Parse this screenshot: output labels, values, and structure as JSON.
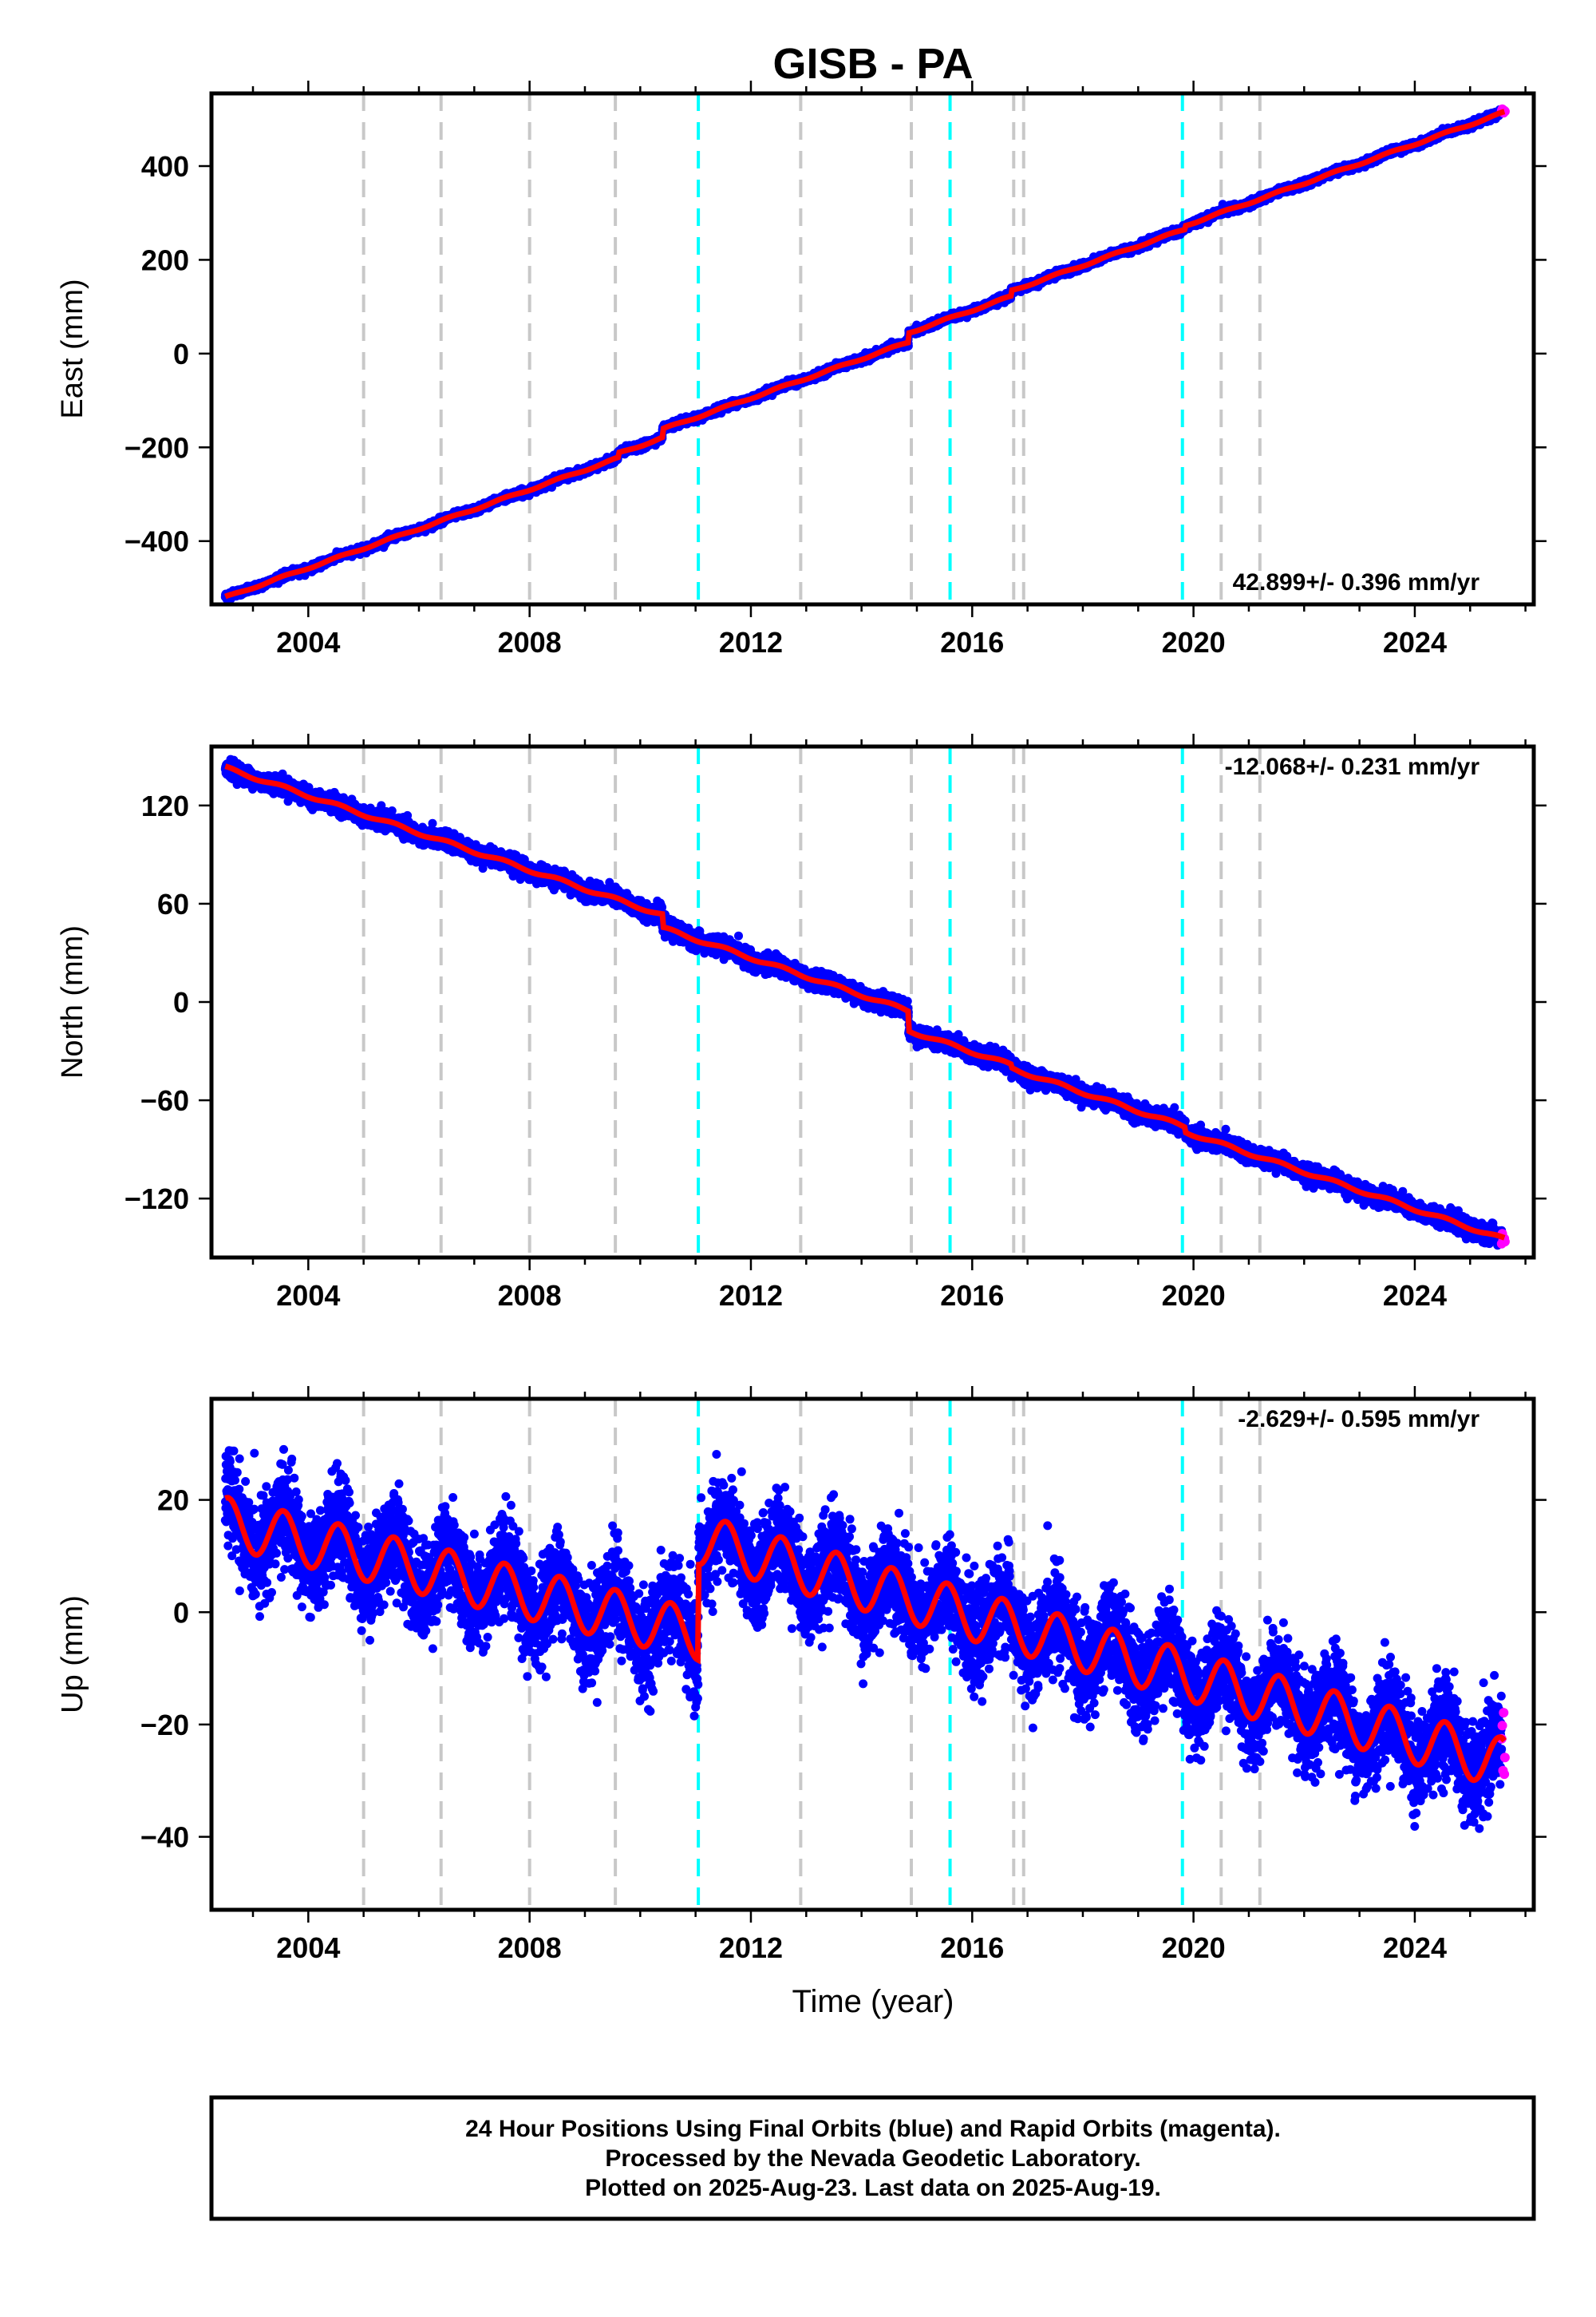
{
  "title": "GISB - PA",
  "xlabel": "Time (year)",
  "footnote": [
    "24 Hour Positions Using Final Orbits (blue) and Rapid Orbits (magenta).",
    "Processed by the Nevada Geodetic Laboratory.",
    "Plotted on 2025-Aug-23. Last data on 2025-Aug-19."
  ],
  "colors": {
    "final_orbits": "#0000ff",
    "rapid_orbits": "#ff00ff",
    "model_fit": "#ff0000",
    "equipment_change": "#c8c8c8",
    "earthquake": "#00ffff"
  },
  "chart_data": [
    {
      "type": "scatter",
      "ylabel": "East (mm)",
      "rate_label": "42.899+/- 0.396 mm/yr",
      "xlim": [
        2002.25,
        2026.15
      ],
      "ylim": [
        -535,
        555
      ],
      "x_ticks": [
        2004,
        2008,
        2012,
        2016,
        2020,
        2024
      ],
      "y_ticks": [
        -400,
        -200,
        0,
        200,
        400
      ],
      "grid": false,
      "trend": {
        "start": [
          2002.5,
          -520
        ],
        "end": [
          2025.63,
          515
        ],
        "rate": 42.899
      },
      "offsets": [
        {
          "x": 2009.6,
          "dy": 10
        },
        {
          "x": 2010.4,
          "dy": 18
        },
        {
          "x": 2014.85,
          "dy": 20
        },
        {
          "x": 2016.7,
          "dy": 12
        },
        {
          "x": 2019.85,
          "dy": 8
        }
      ],
      "seasonal_amplitude": 2,
      "scatter_sd": 3.5
    },
    {
      "type": "scatter",
      "ylabel": "North (mm)",
      "rate_label": "-12.068+/- 0.231 mm/yr",
      "xlim": [
        2002.25,
        2026.15
      ],
      "ylim": [
        -156,
        156
      ],
      "x_ticks": [
        2004,
        2008,
        2012,
        2016,
        2020,
        2024
      ],
      "y_ticks": [
        -120,
        -60,
        0,
        60,
        120
      ],
      "grid": false,
      "trend": {
        "start": [
          2002.5,
          143
        ],
        "end": [
          2025.63,
          -145
        ],
        "rate": -12.068
      },
      "offsets": [
        {
          "x": 2009.6,
          "dy": 0
        },
        {
          "x": 2010.4,
          "dy": -8
        },
        {
          "x": 2014.85,
          "dy": -12
        },
        {
          "x": 2016.7,
          "dy": -2
        },
        {
          "x": 2019.85,
          "dy": -3
        }
      ],
      "seasonal_amplitude": 1,
      "scatter_sd": 2.5
    },
    {
      "type": "scatter",
      "ylabel": "Up (mm)",
      "rate_label": "-2.629+/- 0.595 mm/yr",
      "xlim": [
        2002.25,
        2026.15
      ],
      "ylim": [
        -53,
        38
      ],
      "x_ticks": [
        2004,
        2008,
        2012,
        2016,
        2020,
        2024
      ],
      "y_ticks": [
        -40,
        -20,
        0,
        20
      ],
      "grid": false,
      "segments": [
        {
          "from": 2002.5,
          "to": 2011.05,
          "start": 16,
          "end": -4
        },
        {
          "from": 2011.05,
          "to": 2025.63,
          "start": 13,
          "end": -27
        }
      ],
      "seasonal_amplitude": 4.5,
      "scatter_sd": 4.2
    }
  ],
  "equipment_changes": [
    2005.0,
    2006.4,
    2008.0,
    2009.55,
    2012.9,
    2014.9,
    2016.75,
    2016.93,
    2020.5,
    2021.2
  ],
  "earthquakes": [
    2011.05,
    2015.6,
    2019.8
  ]
}
